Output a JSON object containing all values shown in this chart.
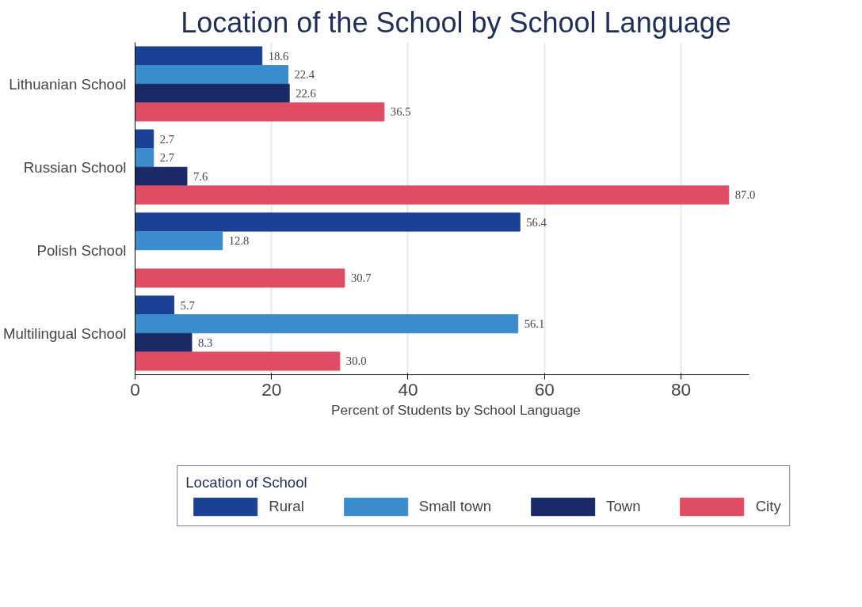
{
  "chart_data": {
    "type": "bar",
    "orientation": "horizontal",
    "title": "Location of the School by School Language",
    "xlabel": "Percent of Students by School Language",
    "legend_title": "Location of School",
    "categories": [
      "Lithuanian School",
      "Russian School",
      "Polish School",
      "Multilingual School"
    ],
    "series": [
      {
        "name": "Rural",
        "color": "#1a4193",
        "values": [
          18.6,
          2.7,
          56.4,
          5.7
        ],
        "value_labels": [
          "18.6",
          "2.7",
          "56.4",
          "5.7"
        ]
      },
      {
        "name": "Small town",
        "color": "#3a8ccd",
        "values": [
          22.4,
          2.7,
          12.8,
          56.1
        ],
        "value_labels": [
          "22.4",
          "2.7",
          "12.8",
          "56.1"
        ]
      },
      {
        "name": "Town",
        "color": "#1a2a66",
        "values": [
          22.6,
          7.6,
          null,
          8.3
        ],
        "value_labels": [
          "22.6",
          "7.6",
          null,
          "8.3"
        ]
      },
      {
        "name": "City",
        "color": "#e04c64",
        "values": [
          36.5,
          87.0,
          30.7,
          30.0
        ],
        "value_labels": [
          "36.5",
          "87.0",
          "30.7",
          "30.0"
        ]
      }
    ],
    "xlim": [
      0,
      90
    ],
    "xticks": [
      0,
      20,
      40,
      60,
      80
    ],
    "grid": "x",
    "legend": "bottom"
  }
}
